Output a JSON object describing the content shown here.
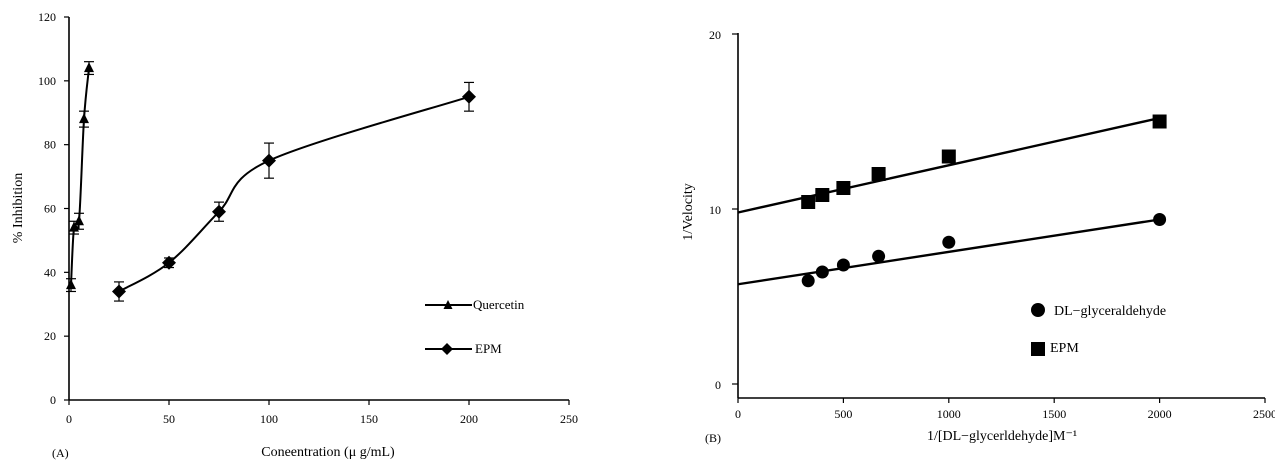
{
  "chart_data": [
    {
      "panel_label": "(A)",
      "type": "line",
      "xlabel": "Coneentration (μ g/mL)",
      "ylabel": "% Inhibition",
      "xlim": [
        0,
        250
      ],
      "ylim": [
        0,
        120
      ],
      "xticks": [
        0,
        50,
        100,
        150,
        200,
        250
      ],
      "yticks": [
        0,
        20,
        40,
        60,
        80,
        100,
        120
      ],
      "grid": false,
      "legend_position": "bottom-right",
      "series": [
        {
          "name": "Quercetin",
          "marker": "triangle",
          "x": [
            1,
            2.5,
            5,
            7.5,
            10
          ],
          "y": [
            36,
            54,
            56,
            88,
            104
          ],
          "error": [
            2,
            2,
            2.5,
            2.5,
            2
          ]
        },
        {
          "name": "EPM",
          "marker": "diamond",
          "x": [
            25,
            50,
            75,
            100,
            200
          ],
          "y": [
            34,
            43,
            59,
            75,
            95
          ],
          "error": [
            3,
            1.5,
            3,
            5.5,
            4.5
          ]
        }
      ]
    },
    {
      "panel_label": "(B)",
      "type": "scatter",
      "xlabel": "1/[DL−glycerldehyde]M⁻¹",
      "ylabel": "1/Velocity",
      "xlim": [
        0,
        2500
      ],
      "ylim": [
        0,
        20
      ],
      "xticks": [
        0,
        500,
        1000,
        1500,
        2000,
        2500
      ],
      "yticks": [
        0,
        10,
        20
      ],
      "grid": false,
      "legend_position": "bottom-right",
      "series": [
        {
          "name": "DL−glyceraldehyde",
          "marker": "circle",
          "x": [
            333,
            400,
            500,
            667,
            1000,
            2000
          ],
          "y": [
            5.9,
            6.4,
            6.8,
            7.3,
            8.1,
            9.4
          ],
          "fit": {
            "intercept": 5.7,
            "slope": 0.00185
          }
        },
        {
          "name": "EPM",
          "marker": "square",
          "x": [
            333,
            400,
            500,
            667,
            1000,
            2000
          ],
          "y": [
            10.4,
            10.8,
            11.2,
            12.0,
            13.0,
            15.0
          ],
          "fit": {
            "intercept": 9.8,
            "slope": 0.0027
          }
        }
      ]
    }
  ]
}
